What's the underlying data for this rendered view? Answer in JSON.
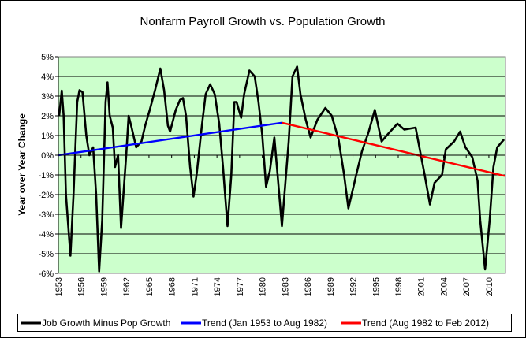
{
  "chart_data": {
    "type": "line",
    "title": "Nonfarm Payroll Growth vs. Population Growth",
    "xlabel": "",
    "ylabel": "Year over Year Change",
    "xlim": [
      1953,
      2012.2
    ],
    "ylim": [
      -6,
      5
    ],
    "y_ticks": [
      "5%",
      "4%",
      "3%",
      "2%",
      "1%",
      "0%",
      "-1%",
      "-2%",
      "-3%",
      "-4%",
      "-5%",
      "-6%"
    ],
    "y_tick_values": [
      5,
      4,
      3,
      2,
      1,
      0,
      -1,
      -2,
      -3,
      -4,
      -5,
      -6
    ],
    "x_ticks": [
      "1953",
      "1956",
      "1959",
      "1962",
      "1965",
      "1968",
      "1971",
      "1974",
      "1977",
      "1980",
      "1983",
      "1986",
      "1989",
      "1992",
      "1995",
      "1998",
      "2001",
      "2004",
      "2007",
      "2010"
    ],
    "grid": "horizontal",
    "legend_position": "bottom",
    "plot_background": "#CCFFCC",
    "series": [
      {
        "name": "Job Growth Minus Pop Growth",
        "color": "#000000",
        "x": [
          1953.1,
          1953.45,
          1953.7,
          1954.0,
          1954.6,
          1955.0,
          1955.5,
          1955.8,
          1956.2,
          1956.7,
          1957.1,
          1957.6,
          1958.0,
          1958.4,
          1958.8,
          1959.25,
          1959.5,
          1959.8,
          1960.2,
          1960.5,
          1960.9,
          1961.3,
          1962.0,
          1962.3,
          1962.7,
          1963.3,
          1964.0,
          1964.5,
          1965.1,
          1965.8,
          1966.5,
          1967.0,
          1967.5,
          1967.8,
          1968.55,
          1969.1,
          1969.5,
          1969.9,
          1970.45,
          1970.9,
          1971.3,
          1972.0,
          1972.5,
          1973.1,
          1973.7,
          1974.3,
          1974.8,
          1975.4,
          1975.9,
          1976.3,
          1976.6,
          1977.2,
          1977.6,
          1978.3,
          1979.0,
          1979.5,
          1980.0,
          1980.5,
          1981.0,
          1981.6,
          1982.0,
          1982.6,
          1983.5,
          1984.0,
          1984.6,
          1985.05,
          1985.75,
          1986.4,
          1987.3,
          1988.35,
          1989.2,
          1990.1,
          1990.8,
          1991.4,
          1992.5,
          1993.2,
          1994.1,
          1994.9,
          1995.8,
          1996.7,
          1997.9,
          1998.8,
          2000.3,
          2001.0,
          2001.5,
          2002.2,
          2002.8,
          2003.8,
          2004.3,
          2005.4,
          2006.2,
          2006.9,
          2007.8,
          2008.5,
          2008.85,
          2009.5,
          2010.1,
          2010.6,
          2011.1,
          2012.0
        ],
        "values": [
          2.0,
          3.28,
          2.0,
          -2.0,
          -5.1,
          -2.0,
          2.7,
          3.3,
          3.2,
          1.0,
          0.0,
          0.4,
          -2.0,
          -5.9,
          -3.3,
          2.7,
          3.7,
          2.0,
          1.4,
          -0.6,
          0.0,
          -3.7,
          0.1,
          2.0,
          1.4,
          0.4,
          0.7,
          1.5,
          2.3,
          3.3,
          4.4,
          3.3,
          1.5,
          1.2,
          2.3,
          2.8,
          2.9,
          2.0,
          -0.6,
          -2.1,
          -1.0,
          1.5,
          3.1,
          3.6,
          3.1,
          1.6,
          -0.6,
          -3.6,
          -1.0,
          2.7,
          2.7,
          1.9,
          3.1,
          4.3,
          4.0,
          2.7,
          1.0,
          -1.6,
          -0.8,
          0.9,
          -0.9,
          -3.6,
          0.7,
          4.0,
          4.5,
          3.1,
          1.8,
          0.9,
          1.8,
          2.4,
          2.0,
          0.8,
          -0.9,
          -2.7,
          -0.9,
          0.2,
          1.2,
          2.3,
          0.7,
          1.1,
          1.6,
          1.3,
          1.4,
          0.0,
          -1.0,
          -2.5,
          -1.4,
          -1.0,
          0.3,
          0.7,
          1.2,
          0.4,
          -0.1,
          -1.3,
          -3.3,
          -5.8,
          -3.3,
          -0.6,
          0.4,
          0.8
        ]
      },
      {
        "name": "Trend (Jan 1953 to Aug 1982)",
        "color": "#0000FF",
        "x": [
          1953.0,
          1982.6
        ],
        "values": [
          0.0,
          1.65
        ]
      },
      {
        "name": "Trend (Aug 1982 to Feb 2012)",
        "color": "#FF0000",
        "x": [
          1982.6,
          2012.1
        ],
        "values": [
          1.65,
          -1.05
        ]
      }
    ]
  }
}
